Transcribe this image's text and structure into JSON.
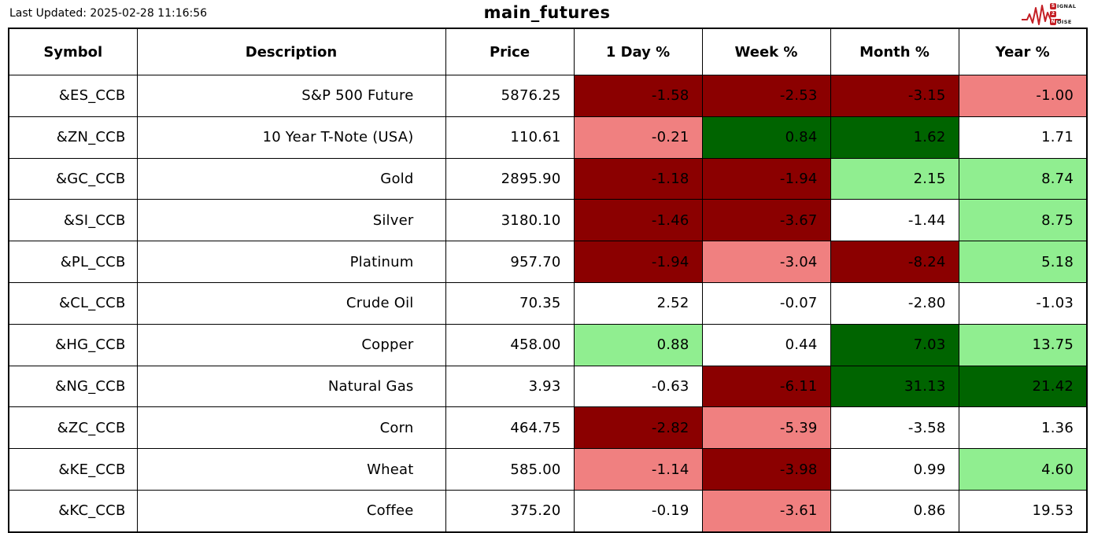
{
  "header": {
    "last_updated": "Last Updated: 2025-02-28 11:16:56",
    "logo": {
      "line1_boxed": "S",
      "line1_rest": "IGNAL",
      "line2_boxed": "2",
      "line2_rest": "",
      "line3_boxed": "N",
      "line3_rest": "OISE"
    }
  },
  "colors": {
    "strong_negative": "#8b0000",
    "mild_negative": "#f08080",
    "strong_positive": "#006400",
    "mild_positive": "#90ee90",
    "neutral": "#ffffff",
    "logo_red": "#c41f25",
    "border": "#000000"
  },
  "chart_data": {
    "type": "table",
    "title": "main_futures",
    "columns": [
      "Symbol",
      "Description",
      "Price",
      "1 Day %",
      "Week %",
      "Month %",
      "Year %"
    ],
    "column_keys": [
      "symbol",
      "description",
      "price",
      "day-pct",
      "week-pct",
      "month-pct",
      "year-pct"
    ],
    "rows": [
      {
        "symbol": "&ES_CCB",
        "description": "S&P 500 Future",
        "price": "5876.25",
        "pcts": [
          {
            "v": "-1.58",
            "c": "darkred"
          },
          {
            "v": "-2.53",
            "c": "darkred"
          },
          {
            "v": "-3.15",
            "c": "darkred"
          },
          {
            "v": "-1.00",
            "c": "lightcoral"
          }
        ]
      },
      {
        "symbol": "&ZN_CCB",
        "description": "10 Year T-Note (USA)",
        "price": "110.61",
        "pcts": [
          {
            "v": "-0.21",
            "c": "lightcoral"
          },
          {
            "v": "0.84",
            "c": "darkgreen"
          },
          {
            "v": "1.62",
            "c": "darkgreen"
          },
          {
            "v": "1.71",
            "c": "white"
          }
        ]
      },
      {
        "symbol": "&GC_CCB",
        "description": "Gold",
        "price": "2895.90",
        "pcts": [
          {
            "v": "-1.18",
            "c": "darkred"
          },
          {
            "v": "-1.94",
            "c": "darkred"
          },
          {
            "v": "2.15",
            "c": "lightgreen"
          },
          {
            "v": "8.74",
            "c": "lightgreen"
          }
        ]
      },
      {
        "symbol": "&SI_CCB",
        "description": "Silver",
        "price": "3180.10",
        "pcts": [
          {
            "v": "-1.46",
            "c": "darkred"
          },
          {
            "v": "-3.67",
            "c": "darkred"
          },
          {
            "v": "-1.44",
            "c": "white"
          },
          {
            "v": "8.75",
            "c": "lightgreen"
          }
        ]
      },
      {
        "symbol": "&PL_CCB",
        "description": "Platinum",
        "price": "957.70",
        "pcts": [
          {
            "v": "-1.94",
            "c": "darkred"
          },
          {
            "v": "-3.04",
            "c": "lightcoral"
          },
          {
            "v": "-8.24",
            "c": "darkred"
          },
          {
            "v": "5.18",
            "c": "lightgreen"
          }
        ]
      },
      {
        "symbol": "&CL_CCB",
        "description": "Crude Oil",
        "price": "70.35",
        "pcts": [
          {
            "v": "2.52",
            "c": "white"
          },
          {
            "v": "-0.07",
            "c": "white"
          },
          {
            "v": "-2.80",
            "c": "white"
          },
          {
            "v": "-1.03",
            "c": "white"
          }
        ]
      },
      {
        "symbol": "&HG_CCB",
        "description": "Copper",
        "price": "458.00",
        "pcts": [
          {
            "v": "0.88",
            "c": "lightgreen"
          },
          {
            "v": "0.44",
            "c": "white"
          },
          {
            "v": "7.03",
            "c": "darkgreen"
          },
          {
            "v": "13.75",
            "c": "lightgreen"
          }
        ]
      },
      {
        "symbol": "&NG_CCB",
        "description": "Natural Gas",
        "price": "3.93",
        "pcts": [
          {
            "v": "-0.63",
            "c": "white"
          },
          {
            "v": "-6.11",
            "c": "darkred"
          },
          {
            "v": "31.13",
            "c": "darkgreen"
          },
          {
            "v": "21.42",
            "c": "darkgreen"
          }
        ]
      },
      {
        "symbol": "&ZC_CCB",
        "description": "Corn",
        "price": "464.75",
        "pcts": [
          {
            "v": "-2.82",
            "c": "darkred"
          },
          {
            "v": "-5.39",
            "c": "lightcoral"
          },
          {
            "v": "-3.58",
            "c": "white"
          },
          {
            "v": "1.36",
            "c": "white"
          }
        ]
      },
      {
        "symbol": "&KE_CCB",
        "description": "Wheat",
        "price": "585.00",
        "pcts": [
          {
            "v": "-1.14",
            "c": "lightcoral"
          },
          {
            "v": "-3.98",
            "c": "darkred"
          },
          {
            "v": "0.99",
            "c": "white"
          },
          {
            "v": "4.60",
            "c": "lightgreen"
          }
        ]
      },
      {
        "symbol": "&KC_CCB",
        "description": "Coffee",
        "price": "375.20",
        "pcts": [
          {
            "v": "-0.19",
            "c": "white"
          },
          {
            "v": "-3.61",
            "c": "lightcoral"
          },
          {
            "v": "0.86",
            "c": "white"
          },
          {
            "v": "19.53",
            "c": "white"
          }
        ]
      }
    ]
  }
}
